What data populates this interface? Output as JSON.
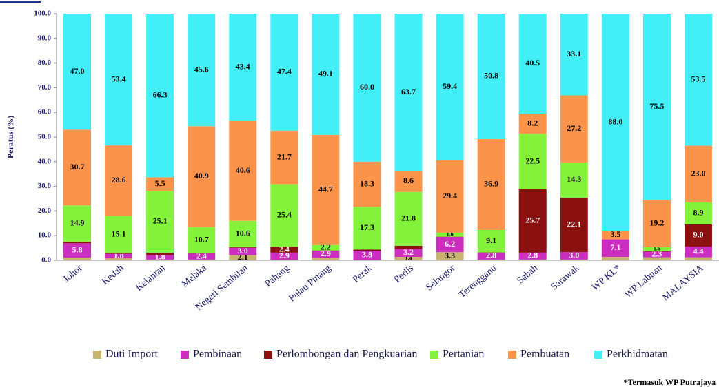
{
  "chart_data": {
    "type": "stacked_bar",
    "ylabel": "Peratus (%)",
    "footnote": "*Termasuk WP Putrajaya",
    "categories": [
      "Johor",
      "Kedah",
      "Kelantan",
      "Melaka",
      "Negeri Sembilan",
      "Pahang",
      "Pulau Pinang",
      "Perak",
      "Perlis",
      "Selangor",
      "Terengganu",
      "Sabah",
      "Sarawak",
      "WP KL*",
      "WP Labuan",
      "MALAYSIA"
    ],
    "ylim": [
      0,
      100
    ],
    "yticks": [
      {
        "value": 0,
        "label": "0.0"
      },
      {
        "value": 10,
        "label": "10.0"
      },
      {
        "value": 20,
        "label": "20.0"
      },
      {
        "value": 30,
        "label": "30.0"
      },
      {
        "value": 40,
        "label": "40.0"
      },
      {
        "value": 50,
        "label": "50.0"
      },
      {
        "value": 60,
        "label": "60.0"
      },
      {
        "value": 70,
        "label": "70.0"
      },
      {
        "value": 80,
        "label": "80.0"
      },
      {
        "value": 90,
        "label": "90.0"
      },
      {
        "value": 100,
        "label": "100.0"
      }
    ],
    "legend": "bottom",
    "series": [
      {
        "name": "Duti Import",
        "color": "#c8b46e",
        "values": [
          1.1,
          0.8,
          0.3,
          0.3,
          2.1,
          0.2,
          1.0,
          0.1,
          1.4,
          3.3,
          0.3,
          0.3,
          0.3,
          1.4,
          1.2,
          1.2
        ],
        "value_labels": [
          null,
          null,
          null,
          null,
          "2.1",
          null,
          null,
          null,
          "1.4",
          "3.3",
          null,
          null,
          null,
          null,
          null,
          null
        ]
      },
      {
        "name": "Pembinaan",
        "color": "#cc2fbf",
        "values": [
          5.8,
          1.8,
          1.8,
          2.4,
          3.0,
          2.9,
          2.9,
          3.8,
          3.2,
          6.2,
          2.8,
          2.8,
          3.0,
          7.1,
          2.3,
          4.4
        ],
        "value_labels": [
          "5.8",
          "1.8",
          "1.8",
          "2.4",
          "3.0",
          "2.9",
          "2.9",
          "3.8",
          "3.2",
          "6.2",
          "2.8",
          "2.8",
          "3.0",
          "7.1",
          "2.3",
          "4.4"
        ]
      },
      {
        "name": "Perlombongan dan Pengkuarian",
        "color": "#8b1111",
        "values": [
          0.5,
          0.3,
          1.0,
          0.1,
          0.3,
          2.4,
          0.1,
          0.5,
          1.3,
          0.1,
          0.1,
          25.7,
          22.1,
          0,
          0.2,
          9.0
        ],
        "value_labels": [
          null,
          null,
          null,
          null,
          null,
          "2.4",
          null,
          null,
          null,
          null,
          null,
          "25.7",
          "22.1",
          null,
          null,
          "9.0"
        ]
      },
      {
        "name": "Pertanian",
        "color": "#84f23a",
        "values": [
          14.9,
          15.1,
          25.1,
          10.7,
          10.6,
          25.4,
          2.2,
          17.3,
          21.8,
          1.6,
          9.1,
          22.5,
          14.3,
          0,
          1.6,
          8.9
        ],
        "value_labels": [
          "14.9",
          "15.1",
          "25.1",
          "10.7",
          "10.6",
          "25.4",
          "2.2",
          "17.3",
          "21.8",
          "1.6",
          "9.1",
          "22.5",
          "14.3",
          null,
          "1.6",
          "8.9"
        ]
      },
      {
        "name": "Pembuatan",
        "color": "#fb934a",
        "values": [
          30.7,
          28.6,
          5.5,
          40.9,
          40.6,
          21.7,
          44.7,
          18.3,
          8.6,
          29.4,
          36.9,
          8.2,
          27.2,
          3.5,
          19.2,
          23.0
        ],
        "value_labels": [
          "30.7",
          "28.6",
          "5.5",
          "40.9",
          "40.6",
          "21.7",
          "44.7",
          "18.3",
          "8.6",
          "29.4",
          "36.9",
          "8.2",
          "27.2",
          "3.5",
          "19.2",
          "23.0"
        ]
      },
      {
        "name": "Perkhidmatan",
        "color": "#43eff7",
        "values": [
          47.0,
          53.4,
          66.3,
          45.6,
          43.4,
          47.4,
          49.1,
          60.0,
          63.7,
          59.4,
          50.8,
          40.5,
          33.1,
          88.0,
          75.5,
          53.5
        ],
        "value_labels": [
          "47.0",
          "53.4",
          "66.3",
          "45.6",
          "43.4",
          "47.4",
          "49.1",
          "60.0",
          "63.7",
          "59.4",
          "50.8",
          "40.5",
          "33.1",
          "88.0",
          "75.5",
          "53.5"
        ]
      }
    ]
  }
}
